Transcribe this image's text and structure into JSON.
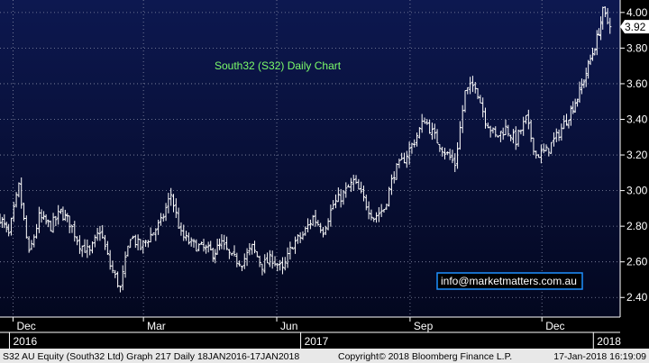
{
  "colors": {
    "background_top": "#0d1850",
    "background_bottom": "#03071f",
    "price_bars": "#ffffff",
    "title": "#7CFC6A",
    "footer_bg": "#e8e8e8",
    "info_border": "#1e90ff"
  },
  "footer": {
    "text": "S32 AU Equity (South32 Ltd) Graph 217  Daily 18JAN2016-17JAN2018",
    "copyright": "Copyright© 2018 Bloomberg Finance L.P.",
    "timestamp": "17-Jan-2018 16:19:09"
  },
  "watermark": "info@marketmatters.com.au",
  "chart_data": {
    "type": "line",
    "style": "ohlc-bars",
    "title": "South32 (S32) Daily Chart",
    "xlabel": "",
    "ylabel": "",
    "x_axis_type": "date",
    "x_range": [
      "2016-11-22",
      "2018-01-24"
    ],
    "ylim": [
      2.29,
      4.07
    ],
    "grid": true,
    "grid_style": "dotted",
    "y_ticks": [
      "2.40",
      "2.60",
      "2.80",
      "3.00",
      "3.20",
      "3.40",
      "3.60",
      "3.80",
      "4.00"
    ],
    "y_tick_values": [
      2.4,
      2.6,
      2.8,
      3.0,
      3.2,
      3.4,
      3.6,
      3.8,
      4.0
    ],
    "x_ticks": [
      {
        "label": "Dec",
        "date": "2016-12-01"
      },
      {
        "label": "Mar",
        "date": "2017-03-01"
      },
      {
        "label": "Jun",
        "date": "2017-06-01"
      },
      {
        "label": "Sep",
        "date": "2017-09-01"
      },
      {
        "label": "Dec",
        "date": "2017-12-01"
      }
    ],
    "year_labels": [
      {
        "label": "2016",
        "date": "2016-12-01"
      },
      {
        "label": "2017",
        "date": "2017-06-20"
      },
      {
        "label": "2018",
        "date": "2018-01-08"
      }
    ],
    "last_price_label": "3.92",
    "last_price": 3.92,
    "series": [
      {
        "x": [
          "2016-11-22",
          "2016-11-28",
          "2016-12-05",
          "2016-12-12",
          "2016-12-19",
          "2016-12-27",
          "2017-01-03",
          "2017-01-09",
          "2017-01-16",
          "2017-01-23",
          "2017-01-30",
          "2017-02-06",
          "2017-02-13",
          "2017-02-20",
          "2017-02-27",
          "2017-03-06",
          "2017-03-13",
          "2017-03-20",
          "2017-03-27",
          "2017-04-03",
          "2017-04-10",
          "2017-04-18",
          "2017-04-24",
          "2017-05-01",
          "2017-05-08",
          "2017-05-15",
          "2017-05-22",
          "2017-05-29",
          "2017-06-05",
          "2017-06-12",
          "2017-06-19",
          "2017-06-26",
          "2017-07-03",
          "2017-07-10",
          "2017-07-17",
          "2017-07-24",
          "2017-07-31",
          "2017-08-07",
          "2017-08-14",
          "2017-08-21",
          "2017-08-28",
          "2017-09-04",
          "2017-09-11",
          "2017-09-18",
          "2017-09-25",
          "2017-10-02",
          "2017-10-09",
          "2017-10-16",
          "2017-10-23",
          "2017-10-30",
          "2017-11-06",
          "2017-11-13",
          "2017-11-20",
          "2017-11-27",
          "2017-12-04",
          "2017-12-11",
          "2017-12-18",
          "2017-12-27",
          "2018-01-02",
          "2018-01-08",
          "2018-01-12",
          "2018-01-17"
        ],
        "values": [
          2.85,
          2.75,
          3.02,
          2.64,
          2.85,
          2.8,
          2.88,
          2.82,
          2.7,
          2.65,
          2.78,
          2.58,
          2.45,
          2.75,
          2.68,
          2.75,
          2.82,
          2.98,
          2.75,
          2.7,
          2.68,
          2.65,
          2.7,
          2.62,
          2.6,
          2.68,
          2.58,
          2.62,
          2.55,
          2.7,
          2.75,
          2.85,
          2.78,
          2.92,
          2.98,
          3.05,
          2.95,
          2.85,
          2.9,
          3.1,
          3.18,
          3.28,
          3.4,
          3.3,
          3.22,
          3.15,
          3.55,
          3.6,
          3.4,
          3.3,
          3.35,
          3.28,
          3.4,
          3.2,
          3.22,
          3.3,
          3.4,
          3.55,
          3.7,
          3.85,
          4.0,
          3.92
        ]
      }
    ]
  }
}
